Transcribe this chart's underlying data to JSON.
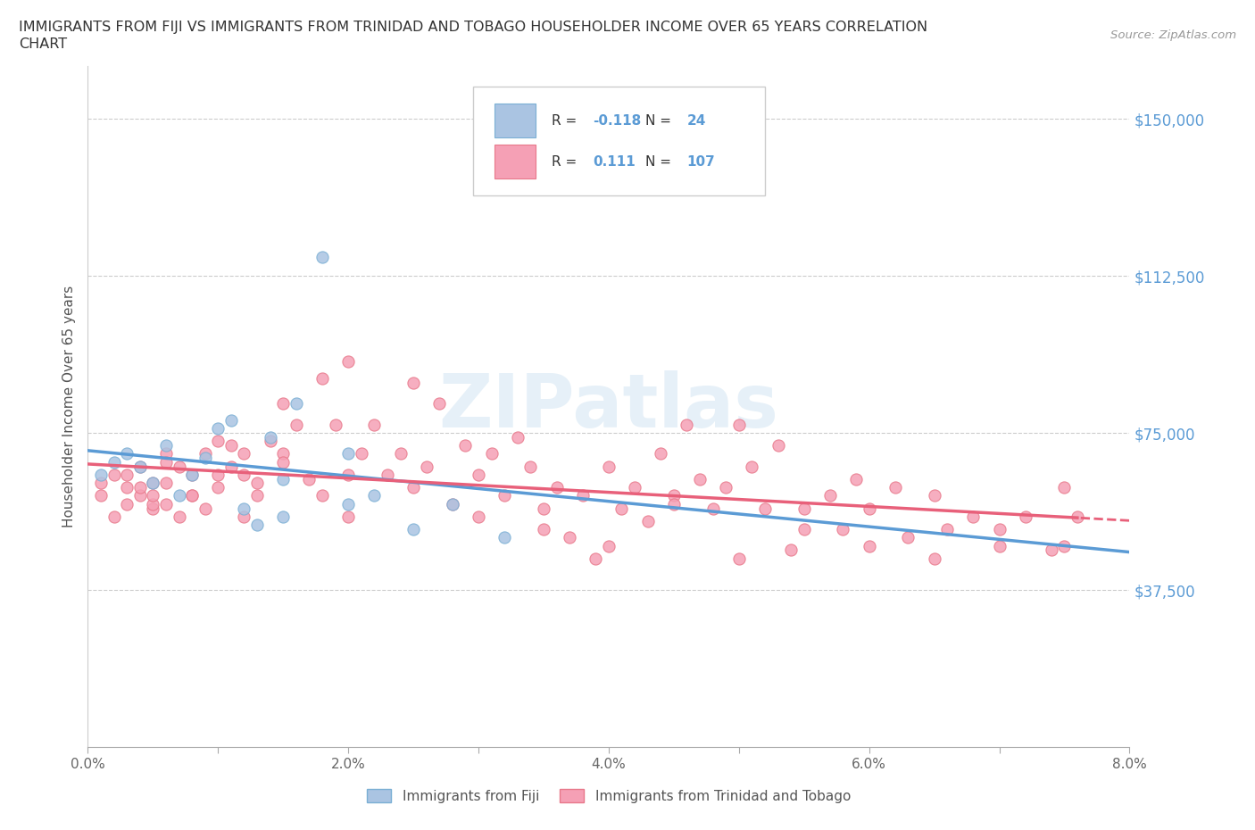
{
  "title_line1": "IMMIGRANTS FROM FIJI VS IMMIGRANTS FROM TRINIDAD AND TOBAGO HOUSEHOLDER INCOME OVER 65 YEARS CORRELATION",
  "title_line2": "CHART",
  "source": "Source: ZipAtlas.com",
  "ylabel": "Householder Income Over 65 years",
  "xlim": [
    0.0,
    0.08
  ],
  "ylim": [
    0,
    162500
  ],
  "xticks": [
    0.0,
    0.01,
    0.02,
    0.03,
    0.04,
    0.05,
    0.06,
    0.07,
    0.08
  ],
  "xticklabels": [
    "0.0%",
    "",
    "2.0%",
    "",
    "4.0%",
    "",
    "6.0%",
    "",
    "8.0%"
  ],
  "yticks": [
    0,
    37500,
    75000,
    112500,
    150000
  ],
  "yticklabels": [
    "",
    "$37,500",
    "$75,000",
    "$112,500",
    "$150,000"
  ],
  "fiji_color": "#aac4e2",
  "fiji_edge": "#7aafd4",
  "tt_color": "#f5a0b5",
  "tt_edge": "#e8788a",
  "fiji_label": "Immigrants from Fiji",
  "tt_label": "Immigrants from Trinidad and Tobago",
  "watermark": "ZIPatlas",
  "grid_color": "#cccccc",
  "background_color": "#ffffff",
  "trend_blue": "#5b9bd5",
  "trend_pink": "#e8607a",
  "fiji_R": "-0.118",
  "fiji_N": "24",
  "tt_R": "0.111",
  "tt_N": "107",
  "fiji_scatter_x": [
    0.001,
    0.002,
    0.003,
    0.004,
    0.005,
    0.006,
    0.007,
    0.008,
    0.009,
    0.01,
    0.011,
    0.012,
    0.013,
    0.014,
    0.015,
    0.016,
    0.018,
    0.02,
    0.022,
    0.025,
    0.028,
    0.032,
    0.015,
    0.02
  ],
  "fiji_scatter_y": [
    65000,
    68000,
    70000,
    67000,
    63000,
    72000,
    60000,
    65000,
    69000,
    76000,
    78000,
    57000,
    53000,
    74000,
    64000,
    82000,
    117000,
    70000,
    60000,
    52000,
    58000,
    50000,
    55000,
    58000
  ],
  "tt_scatter_x": [
    0.001,
    0.001,
    0.002,
    0.002,
    0.003,
    0.003,
    0.004,
    0.004,
    0.005,
    0.005,
    0.005,
    0.006,
    0.006,
    0.006,
    0.007,
    0.007,
    0.008,
    0.008,
    0.009,
    0.009,
    0.01,
    0.01,
    0.011,
    0.011,
    0.012,
    0.012,
    0.013,
    0.013,
    0.014,
    0.015,
    0.015,
    0.016,
    0.017,
    0.018,
    0.019,
    0.02,
    0.02,
    0.021,
    0.022,
    0.023,
    0.024,
    0.025,
    0.026,
    0.027,
    0.028,
    0.029,
    0.03,
    0.031,
    0.032,
    0.033,
    0.034,
    0.035,
    0.036,
    0.037,
    0.038,
    0.039,
    0.04,
    0.041,
    0.042,
    0.043,
    0.044,
    0.045,
    0.046,
    0.047,
    0.048,
    0.049,
    0.05,
    0.051,
    0.052,
    0.053,
    0.054,
    0.055,
    0.057,
    0.058,
    0.059,
    0.06,
    0.062,
    0.063,
    0.065,
    0.066,
    0.068,
    0.07,
    0.072,
    0.074,
    0.075,
    0.076,
    0.003,
    0.004,
    0.005,
    0.006,
    0.008,
    0.01,
    0.012,
    0.015,
    0.018,
    0.02,
    0.025,
    0.03,
    0.035,
    0.04,
    0.045,
    0.05,
    0.055,
    0.06,
    0.065,
    0.07,
    0.075
  ],
  "tt_scatter_y": [
    63000,
    60000,
    65000,
    55000,
    62000,
    58000,
    67000,
    60000,
    57000,
    63000,
    58000,
    70000,
    63000,
    58000,
    67000,
    55000,
    65000,
    60000,
    70000,
    57000,
    73000,
    62000,
    67000,
    72000,
    70000,
    65000,
    63000,
    60000,
    73000,
    82000,
    70000,
    77000,
    64000,
    88000,
    77000,
    65000,
    92000,
    70000,
    77000,
    65000,
    70000,
    87000,
    67000,
    82000,
    58000,
    72000,
    65000,
    70000,
    60000,
    74000,
    67000,
    57000,
    62000,
    50000,
    60000,
    45000,
    67000,
    57000,
    62000,
    54000,
    70000,
    60000,
    77000,
    64000,
    57000,
    62000,
    77000,
    67000,
    57000,
    72000,
    47000,
    57000,
    60000,
    52000,
    64000,
    57000,
    62000,
    50000,
    60000,
    52000,
    55000,
    48000,
    55000,
    47000,
    62000,
    55000,
    65000,
    62000,
    60000,
    68000,
    60000,
    65000,
    55000,
    68000,
    60000,
    55000,
    62000,
    55000,
    52000,
    48000,
    58000,
    45000,
    52000,
    48000,
    45000,
    52000,
    48000
  ]
}
